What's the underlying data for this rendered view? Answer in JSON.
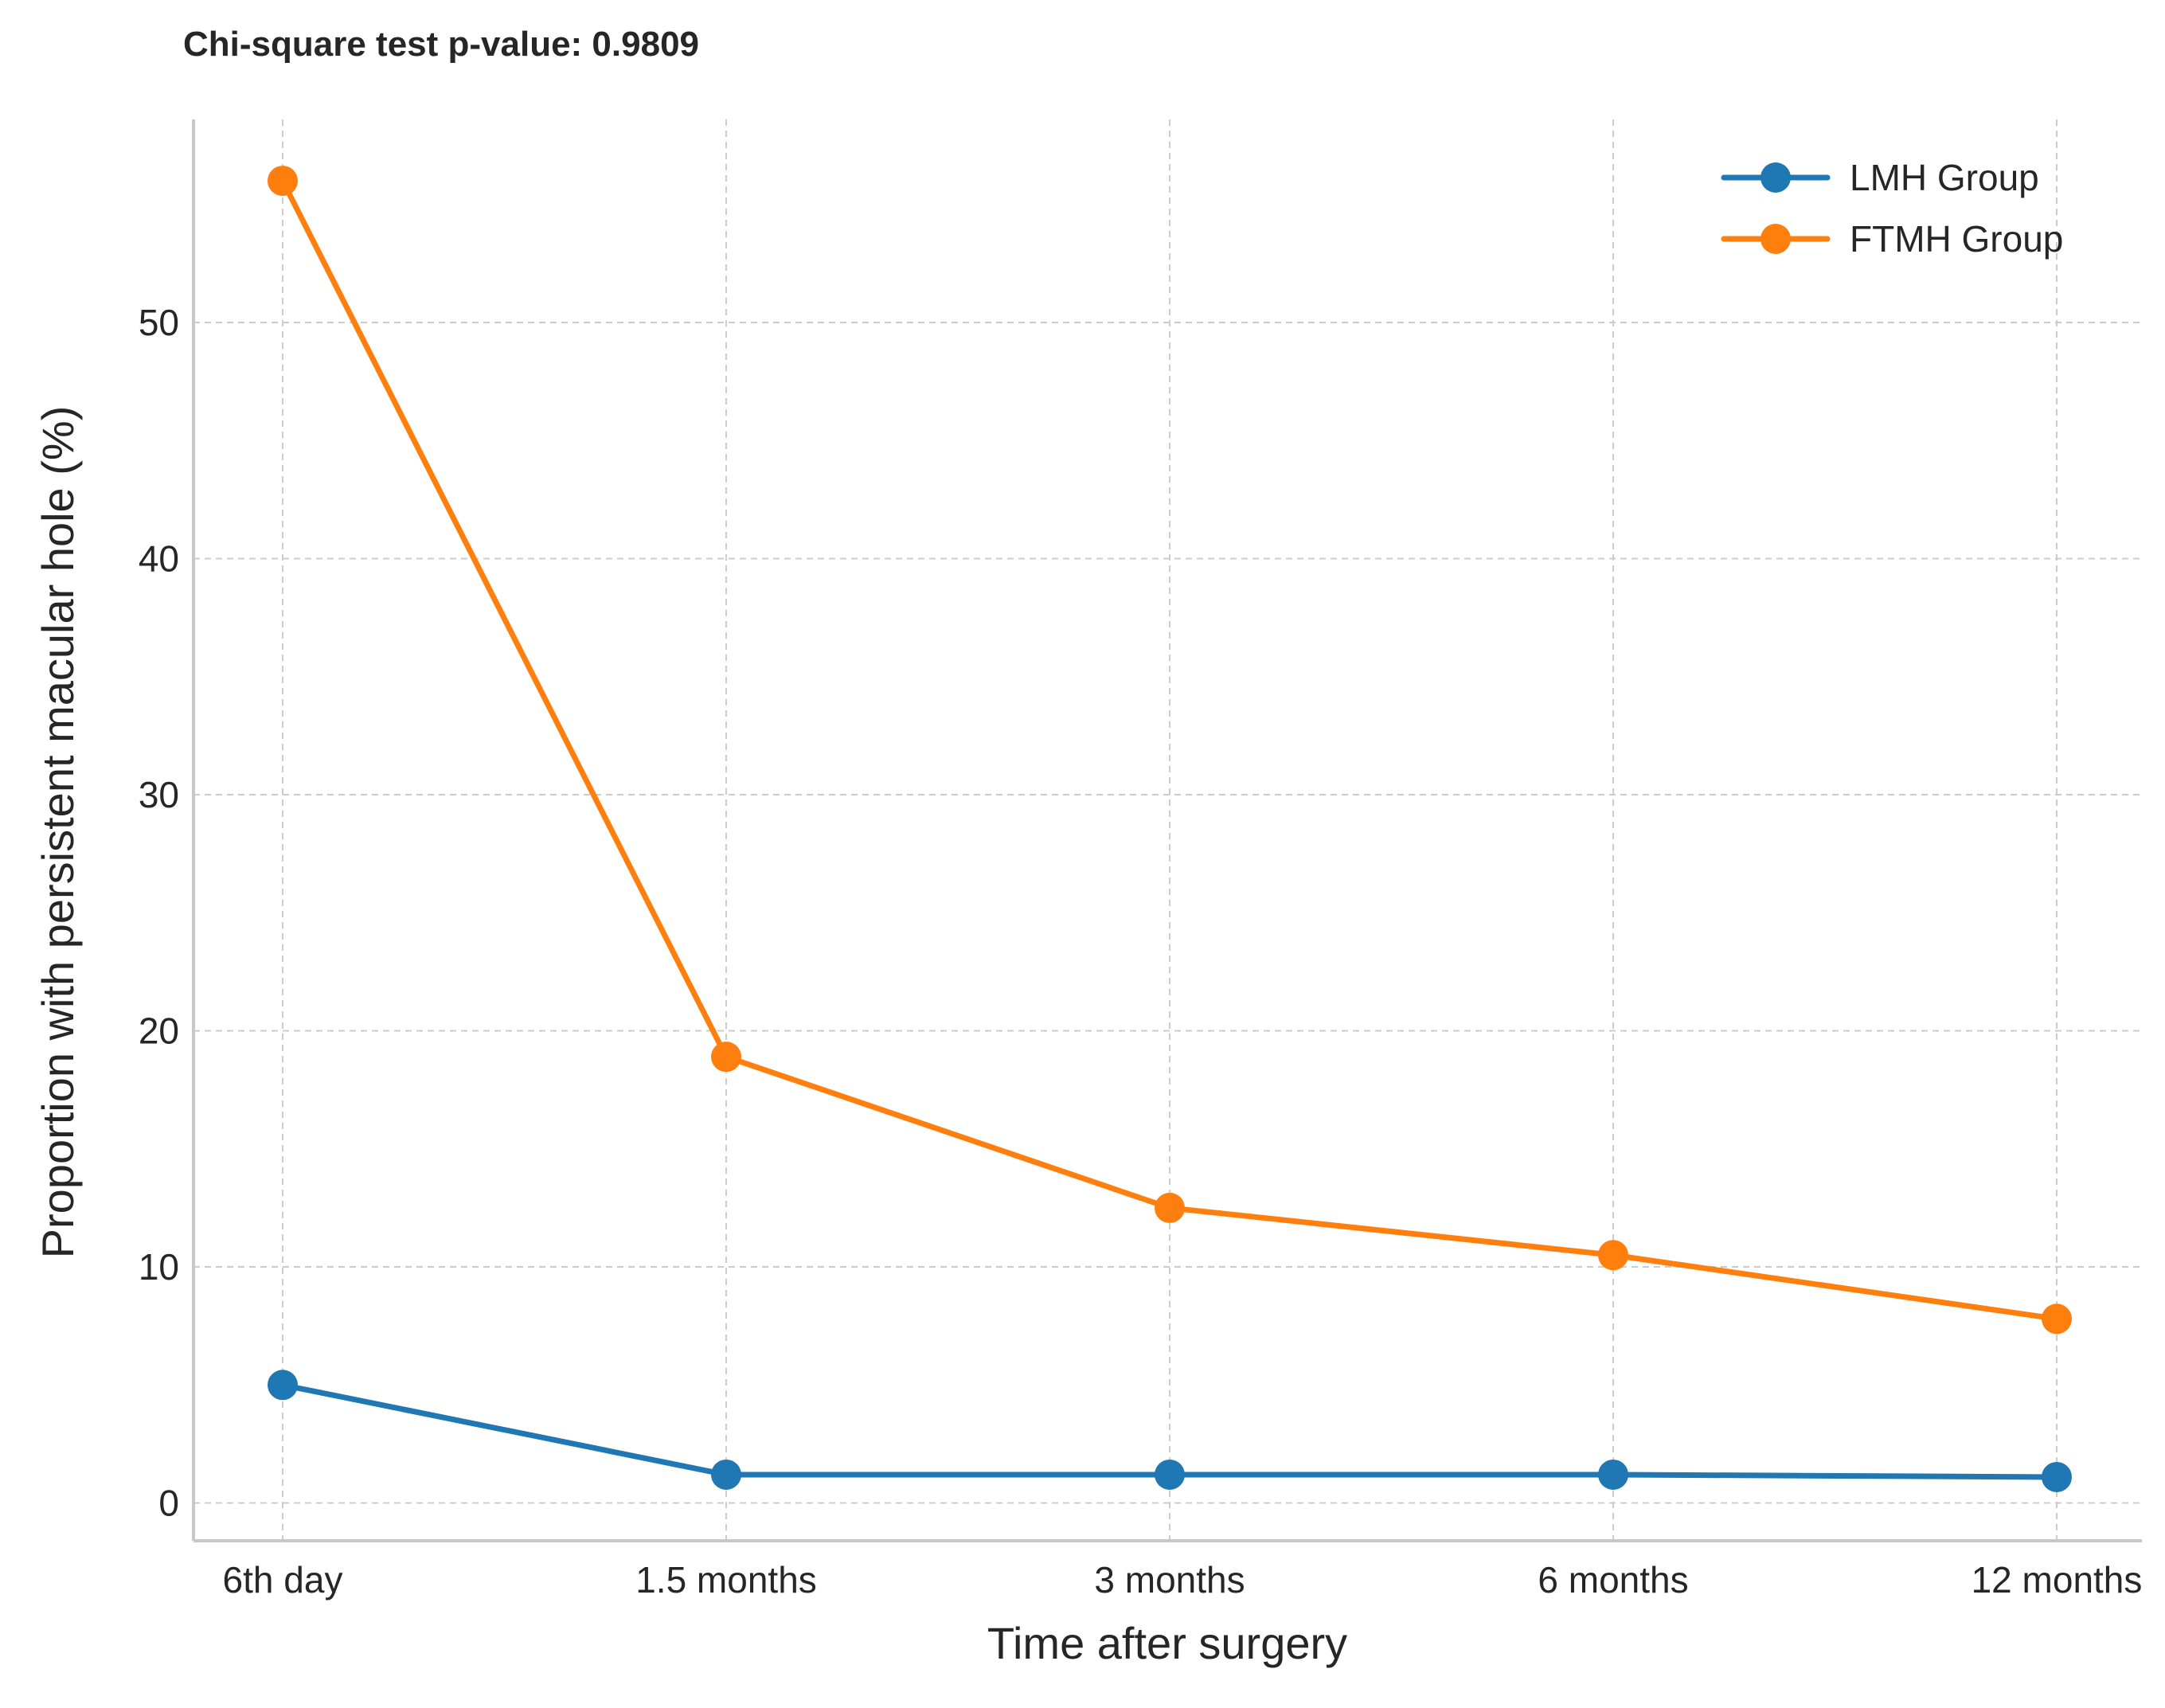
{
  "chart_data": {
    "type": "line",
    "annotation": "Chi-square test p-value: 0.9809",
    "xlabel": "Time after surgery",
    "ylabel": "Proportion with persistent macular hole (%)",
    "categories": [
      "6th day",
      "1.5 months",
      "3 months",
      "6 months",
      "12 months"
    ],
    "yticks": [
      0,
      10,
      20,
      30,
      40,
      50
    ],
    "ylim": [
      -1.6,
      58.6
    ],
    "grid": true,
    "legend_position": "top-right",
    "series": [
      {
        "name": "LMH Group",
        "color": "#1f77b4",
        "values": [
          5.0,
          1.2,
          1.2,
          1.2,
          1.1
        ]
      },
      {
        "name": "FTMH Group",
        "color": "#ff7f0e",
        "values": [
          56.0,
          18.9,
          12.5,
          10.5,
          7.8
        ]
      }
    ]
  }
}
